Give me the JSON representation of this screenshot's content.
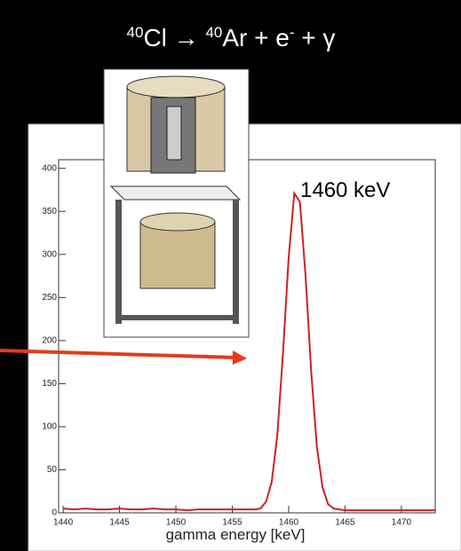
{
  "title_parts": [
    {
      "text": "40",
      "sup": true
    },
    {
      "text": "Cl → ",
      "sup": false
    },
    {
      "text": "40",
      "sup": true
    },
    {
      "text": "Ar + e",
      "sup": false
    },
    {
      "text": "-",
      "sup": true
    },
    {
      "text": " + γ",
      "sup": false
    }
  ],
  "chart_data": {
    "type": "line",
    "annotation": "1460 keV",
    "x_label": "gamma energy [keV]",
    "x": [
      1440,
      1441,
      1442,
      1443,
      1444,
      1445,
      1446,
      1447,
      1448,
      1449,
      1450,
      1451,
      1452,
      1453,
      1454,
      1455,
      1456,
      1457,
      1457.5,
      1458,
      1458.5,
      1459,
      1459.5,
      1460,
      1460.5,
      1461,
      1461.5,
      1462,
      1462.5,
      1463,
      1463.5,
      1464,
      1465,
      1466,
      1467,
      1468,
      1469,
      1470,
      1471,
      1472,
      1473
    ],
    "series": [
      {
        "color": "#cc2222",
        "values": [
          5,
          4,
          5,
          4,
          4,
          5,
          4,
          4,
          5,
          4,
          4,
          3,
          4,
          4,
          4,
          4,
          4,
          4,
          5,
          13,
          36,
          91,
          186,
          296,
          371,
          361,
          275,
          164,
          77,
          30,
          10,
          5,
          3,
          3,
          3,
          3,
          3,
          3,
          3,
          3,
          3
        ]
      }
    ],
    "xlim": [
      1439.6,
      1473
    ],
    "ylim": [
      0,
      410
    ],
    "xticks": [
      1440,
      1445,
      1450,
      1455,
      1460,
      1465,
      1470
    ],
    "yticks": [
      0,
      50,
      100,
      150,
      200,
      250,
      300,
      350,
      400
    ]
  }
}
